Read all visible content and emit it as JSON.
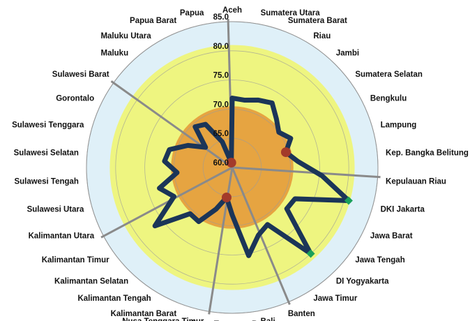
{
  "chart_data": {
    "type": "radar",
    "categories": [
      "Aceh",
      "Sumatera Utara",
      "Sumatera Barat",
      "Riau",
      "Jambi",
      "Sumatera Selatan",
      "Bengkulu",
      "Lampung",
      "Kep. Bangka Belitung",
      "Kepulauan Riau",
      "DKI Jakarta",
      "Jawa Barat",
      "Jawa Tengah",
      "DI Yogyakarta",
      "Jawa Timur",
      "Banten",
      "Bali",
      "Nusa Tenggara Barat",
      "Nusa Tenggara Timur",
      "Kalimantan Barat",
      "Kalimantan Tengah",
      "Kalimantan Selatan",
      "Kalimantan Timur",
      "Kalimantan Utara",
      "Sulawesi Utara",
      "Sulawesi Tengah",
      "Sulawesi Selatan",
      "Sulawesi Tenggara",
      "Gorontalo",
      "Sulawesi Barat",
      "Maluku",
      "Maluku Utara",
      "Papua Barat",
      "Papua"
    ],
    "series": [
      {
        "color": "#1b3558",
        "values": [
          71.9,
          71.74,
          72.39,
          73.0,
          71.26,
          70.02,
          71.21,
          69.57,
          71.3,
          75.48,
          80.76,
          72.03,
          71.73,
          79.99,
          71.5,
          72.44,
          75.38,
          68.14,
          65.23,
          67.65,
          70.91,
          70.72,
          76.61,
          71.15,
          72.99,
          69.5,
          71.66,
          71.2,
          68.49,
          65.73,
          69.45,
          68.7,
          64.7,
          60.84
        ]
      },
      {
        "color": "#a33a2a",
        "marker": "circle",
        "values": [
          null,
          null,
          null,
          null,
          null,
          null,
          null,
          69.57,
          null,
          null,
          null,
          null,
          null,
          null,
          null,
          null,
          null,
          null,
          65.23,
          null,
          null,
          null,
          null,
          null,
          null,
          null,
          null,
          null,
          null,
          null,
          null,
          null,
          null,
          60.84
        ]
      },
      {
        "color": "#1aa05a",
        "marker": "diamond",
        "values": [
          null,
          null,
          null,
          null,
          null,
          null,
          null,
          null,
          null,
          null,
          80.76,
          null,
          null,
          79.99,
          null,
          null,
          null,
          null,
          null,
          null,
          null,
          null,
          null,
          null,
          null,
          null,
          null,
          null,
          null,
          null,
          null,
          null,
          null,
          null
        ]
      }
    ],
    "bands": [
      {
        "value": 85,
        "color": "#dff0f8"
      },
      {
        "value": 81,
        "color": "#eef580"
      },
      {
        "value": 70.5,
        "color": "#e6a441"
      }
    ],
    "rlim": [
      60,
      85
    ],
    "rticks": [
      {
        "value": 60,
        "label": "60.0"
      },
      {
        "value": 65,
        "label": "65.0"
      },
      {
        "value": 70,
        "label": "70.0"
      },
      {
        "value": 75,
        "label": "75.0"
      },
      {
        "value": 80,
        "label": "80.0"
      },
      {
        "value": 85,
        "label": "85.0"
      }
    ],
    "grid": true
  }
}
